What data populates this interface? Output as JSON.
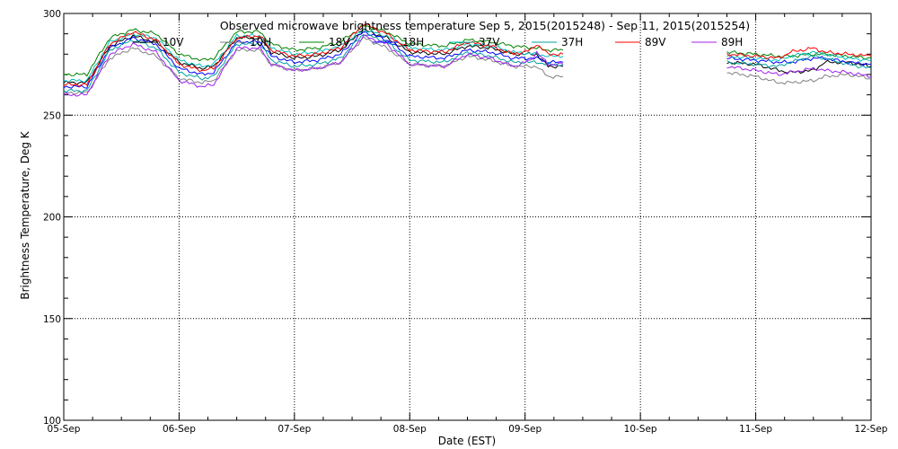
{
  "chart_data": {
    "type": "line",
    "title": "Observed microwave brightness temperature Sep  5, 2015(2015248) - Sep 11, 2015(2015254)",
    "xlabel": "Date (EST)",
    "ylabel": "Brightness Temperature, Deg K",
    "xlim": [
      0,
      7
    ],
    "ylim": [
      100,
      300
    ],
    "x_ticks": [
      "05-Sep",
      "06-Sep",
      "07-Sep",
      "08-Sep",
      "09-Sep",
      "10-Sep",
      "11-Sep",
      "12-Sep"
    ],
    "y_ticks": [
      100,
      150,
      200,
      250,
      300
    ],
    "grid": true,
    "legend_placement": "top",
    "x_unit": "days since 05-Sep",
    "series": [
      {
        "name": "10V",
        "color": "#000000",
        "segments": [
          [
            [
              0,
              266
            ],
            [
              0.2,
              266
            ],
            [
              0.4,
              284
            ],
            [
              0.6,
              289
            ],
            [
              0.8,
              286
            ],
            [
              1.0,
              276
            ],
            [
              1.2,
              273
            ],
            [
              1.3,
              274
            ],
            [
              1.5,
              288
            ],
            [
              1.7,
              288
            ],
            [
              1.8,
              281
            ],
            [
              2.0,
              278
            ],
            [
              2.2,
              279
            ],
            [
              2.4,
              282
            ],
            [
              2.6,
              292
            ],
            [
              2.8,
              288
            ],
            [
              3.0,
              281
            ],
            [
              3.3,
              280
            ],
            [
              3.5,
              284
            ],
            [
              3.7,
              283
            ],
            [
              3.9,
              280
            ],
            [
              4.1,
              280
            ],
            [
              4.2,
              274
            ],
            [
              4.33,
              274
            ]
          ],
          [
            [
              5.75,
              276
            ],
            [
              6.0,
              275
            ],
            [
              6.2,
              272
            ],
            [
              6.3,
              271
            ],
            [
              6.5,
              272
            ],
            [
              6.6,
              276
            ],
            [
              6.8,
              276
            ],
            [
              7.0,
              274
            ]
          ]
        ]
      },
      {
        "name": "10H",
        "color": "#808080",
        "segments": [
          [
            [
              0,
              261
            ],
            [
              0.2,
              261
            ],
            [
              0.4,
              278
            ],
            [
              0.6,
              283
            ],
            [
              0.8,
              279
            ],
            [
              1.0,
              268
            ],
            [
              1.2,
              266
            ],
            [
              1.3,
              267
            ],
            [
              1.5,
              282
            ],
            [
              1.7,
              282
            ],
            [
              1.8,
              275
            ],
            [
              2.0,
              272
            ],
            [
              2.2,
              273
            ],
            [
              2.4,
              276
            ],
            [
              2.6,
              288
            ],
            [
              2.8,
              283
            ],
            [
              3.0,
              275
            ],
            [
              3.3,
              274
            ],
            [
              3.5,
              279
            ],
            [
              3.7,
              277
            ],
            [
              3.9,
              274
            ],
            [
              4.1,
              274
            ],
            [
              4.2,
              269
            ],
            [
              4.33,
              269
            ]
          ],
          [
            [
              5.75,
              271
            ],
            [
              6.0,
              269
            ],
            [
              6.2,
              266
            ],
            [
              6.3,
              266
            ],
            [
              6.5,
              267
            ],
            [
              6.6,
              269
            ],
            [
              6.8,
              270
            ],
            [
              7.0,
              268
            ]
          ]
        ]
      },
      {
        "name": "18V",
        "color": "#008000",
        "segments": [
          [
            [
              0,
              270
            ],
            [
              0.2,
              270
            ],
            [
              0.4,
              288
            ],
            [
              0.6,
              292
            ],
            [
              0.8,
              290
            ],
            [
              1.0,
              280
            ],
            [
              1.2,
              277
            ],
            [
              1.3,
              278
            ],
            [
              1.5,
              291
            ],
            [
              1.7,
              291
            ],
            [
              1.8,
              285
            ],
            [
              2.0,
              282
            ],
            [
              2.2,
              283
            ],
            [
              2.4,
              286
            ],
            [
              2.6,
              294
            ],
            [
              2.8,
              291
            ],
            [
              3.0,
              285
            ],
            [
              3.3,
              284
            ],
            [
              3.5,
              287
            ],
            [
              3.7,
              286
            ],
            [
              3.9,
              284
            ],
            [
              4.1,
              283
            ],
            [
              4.2,
              282
            ],
            [
              4.33,
              282
            ]
          ],
          [
            [
              5.75,
              281
            ],
            [
              6.0,
              280
            ],
            [
              6.2,
              279
            ],
            [
              6.3,
              279
            ],
            [
              6.5,
              280
            ],
            [
              6.6,
              280
            ],
            [
              6.8,
              279
            ],
            [
              7.0,
              278
            ]
          ]
        ]
      },
      {
        "name": "18H",
        "color": "#0000ff",
        "segments": [
          [
            [
              0,
              264
            ],
            [
              0.2,
              264
            ],
            [
              0.4,
              283
            ],
            [
              0.6,
              288
            ],
            [
              0.8,
              285
            ],
            [
              1.0,
              273
            ],
            [
              1.2,
              270
            ],
            [
              1.3,
              271
            ],
            [
              1.5,
              286
            ],
            [
              1.7,
              286
            ],
            [
              1.8,
              279
            ],
            [
              2.0,
              276
            ],
            [
              2.2,
              277
            ],
            [
              2.4,
              280
            ],
            [
              2.6,
              291
            ],
            [
              2.8,
              287
            ],
            [
              3.0,
              279
            ],
            [
              3.3,
              278
            ],
            [
              3.5,
              282
            ],
            [
              3.7,
              281
            ],
            [
              3.9,
              278
            ],
            [
              4.1,
              278
            ],
            [
              4.2,
              276
            ],
            [
              4.33,
              276
            ]
          ],
          [
            [
              5.75,
              278
            ],
            [
              6.0,
              277
            ],
            [
              6.2,
              276
            ],
            [
              6.3,
              276
            ],
            [
              6.5,
              278
            ],
            [
              6.6,
              278
            ],
            [
              6.8,
              276
            ],
            [
              7.0,
              275
            ]
          ]
        ]
      },
      {
        "name": "37V",
        "color": "#00bfbf",
        "segments": [
          [
            [
              0,
              267
            ],
            [
              0.2,
              267
            ],
            [
              0.4,
              286
            ],
            [
              0.6,
              290
            ],
            [
              0.8,
              288
            ],
            [
              1.0,
              277
            ],
            [
              1.2,
              274
            ],
            [
              1.3,
              275
            ],
            [
              1.5,
              289
            ],
            [
              1.7,
              289
            ],
            [
              1.8,
              283
            ],
            [
              2.0,
              280
            ],
            [
              2.2,
              281
            ],
            [
              2.4,
              284
            ],
            [
              2.6,
              292
            ],
            [
              2.8,
              289
            ],
            [
              3.0,
              283
            ],
            [
              3.3,
              282
            ],
            [
              3.5,
              285
            ],
            [
              3.7,
              284
            ],
            [
              3.9,
              281
            ],
            [
              4.1,
              280
            ],
            [
              4.2,
              279
            ],
            [
              4.33,
              279
            ]
          ],
          [
            [
              5.75,
              279
            ],
            [
              6.0,
              278
            ],
            [
              6.2,
              277
            ],
            [
              6.3,
              279
            ],
            [
              6.5,
              281
            ],
            [
              6.6,
              280
            ],
            [
              6.8,
              278
            ],
            [
              7.0,
              277
            ]
          ]
        ]
      },
      {
        "name": "37H",
        "color": "#00a0a0",
        "segments": [
          [
            [
              0,
              262
            ],
            [
              0.2,
              262
            ],
            [
              0.4,
              282
            ],
            [
              0.6,
              287
            ],
            [
              0.8,
              283
            ],
            [
              1.0,
              271
            ],
            [
              1.2,
              268
            ],
            [
              1.3,
              269
            ],
            [
              1.5,
              285
            ],
            [
              1.7,
              285
            ],
            [
              1.8,
              277
            ],
            [
              2.0,
              274
            ],
            [
              2.2,
              275
            ],
            [
              2.4,
              278
            ],
            [
              2.6,
              290
            ],
            [
              2.8,
              286
            ],
            [
              3.0,
              277
            ],
            [
              3.3,
              276
            ],
            [
              3.5,
              281
            ],
            [
              3.7,
              279
            ],
            [
              3.9,
              276
            ],
            [
              4.1,
              276
            ],
            [
              4.2,
              275
            ],
            [
              4.33,
              275
            ]
          ],
          [
            [
              5.75,
              276
            ],
            [
              6.0,
              275
            ],
            [
              6.2,
              274
            ],
            [
              6.3,
              276
            ],
            [
              6.5,
              279
            ],
            [
              6.6,
              278
            ],
            [
              6.8,
              275
            ],
            [
              7.0,
              273
            ]
          ]
        ]
      },
      {
        "name": "89V",
        "color": "#ff0000",
        "segments": [
          [
            [
              0,
              265
            ],
            [
              0.2,
              265
            ],
            [
              0.4,
              285
            ],
            [
              0.6,
              291
            ],
            [
              0.8,
              287
            ],
            [
              1.0,
              275
            ],
            [
              1.2,
              272
            ],
            [
              1.3,
              273
            ],
            [
              1.5,
              288
            ],
            [
              1.7,
              289
            ],
            [
              1.8,
              282
            ],
            [
              2.0,
              279
            ],
            [
              2.2,
              280
            ],
            [
              2.4,
              283
            ],
            [
              2.6,
              295
            ],
            [
              2.8,
              290
            ],
            [
              3.0,
              282
            ],
            [
              3.3,
              281
            ],
            [
              3.5,
              286
            ],
            [
              3.7,
              284
            ],
            [
              3.9,
              280
            ],
            [
              4.05,
              282
            ],
            [
              4.1,
              285
            ],
            [
              4.2,
              280
            ],
            [
              4.33,
              280
            ]
          ],
          [
            [
              5.75,
              280
            ],
            [
              6.0,
              279
            ],
            [
              6.2,
              278
            ],
            [
              6.3,
              281
            ],
            [
              6.5,
              283
            ],
            [
              6.6,
              281
            ],
            [
              6.8,
              280
            ],
            [
              7.0,
              279
            ]
          ]
        ]
      },
      {
        "name": "89H",
        "color": "#a020f0",
        "segments": [
          [
            [
              0,
              260
            ],
            [
              0.2,
              260
            ],
            [
              0.4,
              280
            ],
            [
              0.6,
              285
            ],
            [
              0.8,
              281
            ],
            [
              1.0,
              267
            ],
            [
              1.2,
              264
            ],
            [
              1.3,
              265
            ],
            [
              1.5,
              283
            ],
            [
              1.7,
              283
            ],
            [
              1.8,
              275
            ],
            [
              2.0,
              272
            ],
            [
              2.2,
              273
            ],
            [
              2.4,
              276
            ],
            [
              2.6,
              289
            ],
            [
              2.8,
              285
            ],
            [
              3.0,
              275
            ],
            [
              3.3,
              274
            ],
            [
              3.5,
              280
            ],
            [
              3.7,
              278
            ],
            [
              3.9,
              274
            ],
            [
              4.05,
              277
            ],
            [
              4.1,
              281
            ],
            [
              4.2,
              275
            ],
            [
              4.33,
              275
            ]
          ],
          [
            [
              5.75,
              274
            ],
            [
              6.0,
              272
            ],
            [
              6.2,
              270
            ],
            [
              6.3,
              271
            ],
            [
              6.5,
              273
            ],
            [
              6.6,
              272
            ],
            [
              6.8,
              271
            ],
            [
              7.0,
              269
            ]
          ]
        ]
      }
    ]
  }
}
